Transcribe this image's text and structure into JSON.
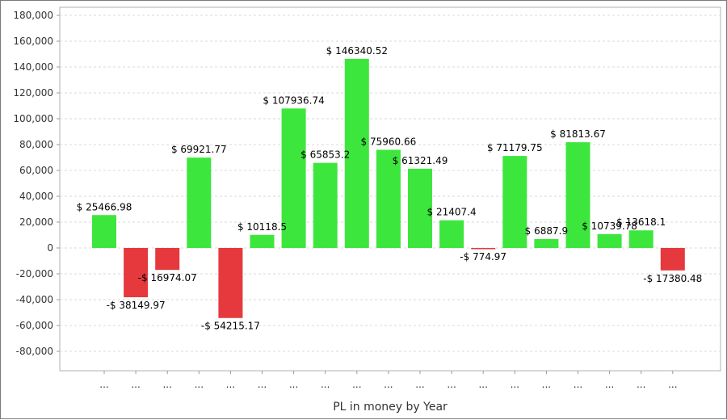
{
  "chart_data": {
    "type": "bar",
    "title": "",
    "xlabel": "PL in money by Year",
    "ylabel": "",
    "ylim": [
      -90000,
      180000
    ],
    "y_ticks": [
      "180,000",
      "160,000",
      "140,000",
      "120,000",
      "100,000",
      "80,000",
      "60,000",
      "40,000",
      "20,000",
      "0",
      "-20,000",
      "-40,000",
      "-60,000",
      "-80,000"
    ],
    "y_tick_values": [
      180000,
      160000,
      140000,
      120000,
      100000,
      80000,
      60000,
      40000,
      20000,
      0,
      -20000,
      -40000,
      -60000,
      -80000
    ],
    "grid": true,
    "legend": "none",
    "categories": [
      "...",
      "...",
      "...",
      "...",
      "...",
      "...",
      "...",
      "...",
      "...",
      "...",
      "...",
      "...",
      "...",
      "...",
      "...",
      "...",
      "...",
      "...",
      "..."
    ],
    "values": [
      25466.98,
      -38149.97,
      -16974.07,
      69921.77,
      -54215.17,
      10118.5,
      107936.74,
      65853.2,
      146340.52,
      75960.66,
      61321.49,
      21407.4,
      -774.97,
      71179.75,
      6887.9,
      81813.67,
      10739.78,
      13618.1,
      -17380.48
    ],
    "data_labels": [
      "$ 25466.98",
      "-$ 38149.97",
      "-$ 16974.07",
      "$ 69921.77",
      "-$ 54215.17",
      "$ 10118.5",
      "$ 107936.74",
      "$ 65853.2",
      "$ 146340.52",
      "$ 75960.66",
      "$ 61321.49",
      "$ 21407.4",
      "-$ 774.97",
      "$ 71179.75",
      "$ 6887.9",
      "$ 81813.67",
      "$ 10739.78",
      "$ 13618.1",
      "-$ 17380.48"
    ],
    "colors": {
      "positive": "#3de63d",
      "negative": "#e5393e",
      "grid": "#d9d9d9",
      "axis": "#999999"
    }
  }
}
